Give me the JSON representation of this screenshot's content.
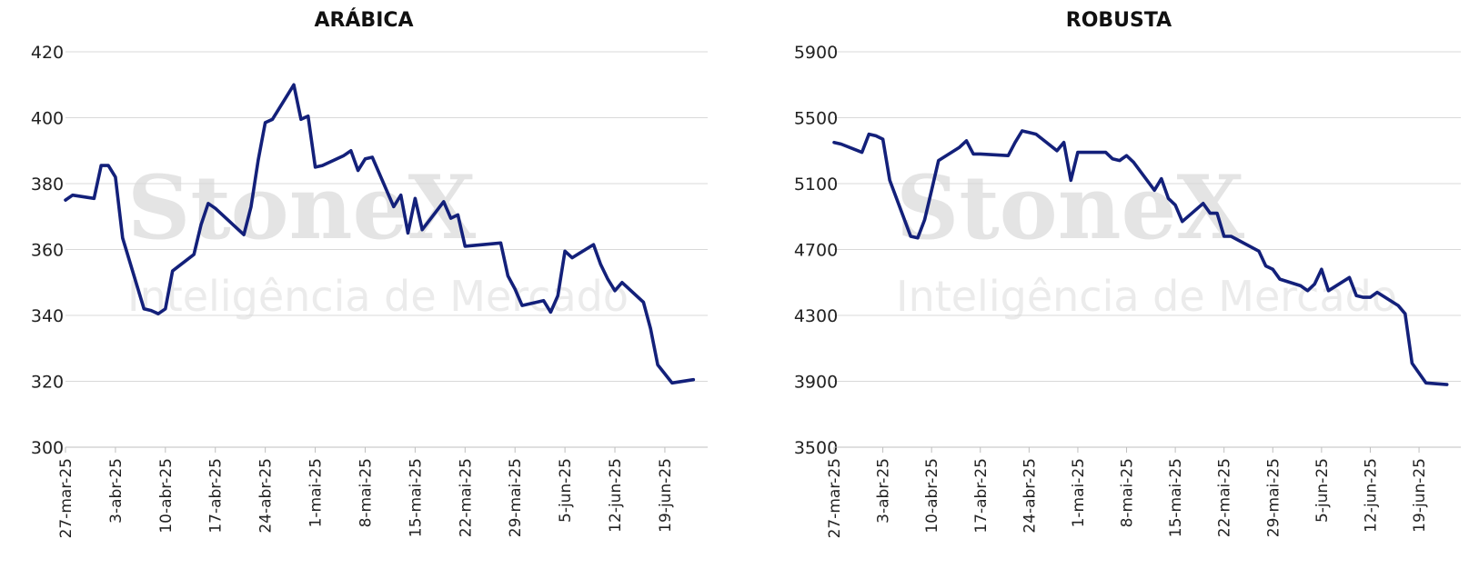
{
  "watermark": {
    "brand": "StoneX",
    "tagline": "Inteligência de Mercado"
  },
  "chart_data": [
    {
      "type": "line",
      "title": "ARÁBICA",
      "ylim": [
        300,
        420
      ],
      "ytick_step": 20,
      "grid": true,
      "color": "#13207a",
      "xtick_labels": [
        "27-mar-25",
        "3-abr-25",
        "10-abr-25",
        "17-abr-25",
        "24-abr-25",
        "1-mai-25",
        "8-mai-25",
        "15-mai-25",
        "22-mai-25",
        "29-mai-25",
        "5-jun-25",
        "12-jun-25",
        "19-jun-25"
      ],
      "x_start": "2025-03-27",
      "x_end": "2025-06-25",
      "series": [
        {
          "x": [
            "2025-03-27",
            "2025-03-28",
            "2025-03-31",
            "2025-04-01",
            "2025-04-02",
            "2025-04-03",
            "2025-04-04",
            "2025-04-07",
            "2025-04-08",
            "2025-04-09",
            "2025-04-10",
            "2025-04-11",
            "2025-04-14",
            "2025-04-15",
            "2025-04-16",
            "2025-04-17",
            "2025-04-21",
            "2025-04-22",
            "2025-04-23",
            "2025-04-24",
            "2025-04-25",
            "2025-04-28",
            "2025-04-29",
            "2025-04-30",
            "2025-05-01",
            "2025-05-02",
            "2025-05-05",
            "2025-05-06",
            "2025-05-07",
            "2025-05-08",
            "2025-05-09",
            "2025-05-12",
            "2025-05-13",
            "2025-05-14",
            "2025-05-15",
            "2025-05-16",
            "2025-05-19",
            "2025-05-20",
            "2025-05-21",
            "2025-05-22",
            "2025-05-27",
            "2025-05-28",
            "2025-05-29",
            "2025-05-30",
            "2025-06-02",
            "2025-06-03",
            "2025-06-04",
            "2025-06-05",
            "2025-06-06",
            "2025-06-09",
            "2025-06-10",
            "2025-06-11",
            "2025-06-12",
            "2025-06-13",
            "2025-06-16",
            "2025-06-17",
            "2025-06-18",
            "2025-06-20",
            "2025-06-23"
          ],
          "values": [
            375.0,
            376.5,
            375.5,
            385.5,
            385.5,
            382.0,
            363.5,
            342.0,
            341.5,
            340.5,
            342.0,
            353.5,
            358.5,
            367.5,
            374.0,
            372.5,
            364.5,
            373.0,
            387.0,
            398.5,
            399.5,
            410.0,
            399.5,
            400.5,
            385.0,
            385.5,
            388.5,
            390.0,
            384.0,
            387.5,
            388.0,
            373.0,
            376.5,
            365.0,
            375.5,
            366.0,
            374.5,
            369.5,
            370.5,
            361.0,
            362.0,
            352.0,
            348.0,
            343.0,
            344.5,
            341.0,
            346.0,
            359.5,
            357.5,
            361.5,
            355.5,
            351.0,
            347.5,
            350.0,
            344.0,
            336.0,
            325.0,
            319.5,
            320.5
          ]
        }
      ]
    },
    {
      "type": "line",
      "title": "ROBUSTA",
      "ylim": [
        3500,
        5900
      ],
      "ytick_step": 400,
      "grid": true,
      "color": "#13207a",
      "xtick_labels": [
        "27-mar-25",
        "3-abr-25",
        "10-abr-25",
        "17-abr-25",
        "24-abr-25",
        "1-mai-25",
        "8-mai-25",
        "15-mai-25",
        "22-mai-25",
        "29-mai-25",
        "5-jun-25",
        "12-jun-25",
        "19-jun-25"
      ],
      "x_start": "2025-03-27",
      "x_end": "2025-06-25",
      "series": [
        {
          "x": [
            "2025-03-27",
            "2025-03-28",
            "2025-03-31",
            "2025-04-01",
            "2025-04-02",
            "2025-04-03",
            "2025-04-04",
            "2025-04-07",
            "2025-04-08",
            "2025-04-09",
            "2025-04-10",
            "2025-04-11",
            "2025-04-14",
            "2025-04-15",
            "2025-04-16",
            "2025-04-17",
            "2025-04-21",
            "2025-04-22",
            "2025-04-23",
            "2025-04-24",
            "2025-04-25",
            "2025-04-28",
            "2025-04-29",
            "2025-04-30",
            "2025-05-01",
            "2025-05-02",
            "2025-05-05",
            "2025-05-06",
            "2025-05-07",
            "2025-05-08",
            "2025-05-09",
            "2025-05-12",
            "2025-05-13",
            "2025-05-14",
            "2025-05-15",
            "2025-05-16",
            "2025-05-19",
            "2025-05-20",
            "2025-05-21",
            "2025-05-22",
            "2025-05-23",
            "2025-05-27",
            "2025-05-28",
            "2025-05-29",
            "2025-05-30",
            "2025-06-02",
            "2025-06-03",
            "2025-06-04",
            "2025-06-05",
            "2025-06-06",
            "2025-06-09",
            "2025-06-10",
            "2025-06-11",
            "2025-06-12",
            "2025-06-13",
            "2025-06-16",
            "2025-06-17",
            "2025-06-18",
            "2025-06-20",
            "2025-06-23"
          ],
          "values": [
            5350,
            5340,
            5290,
            5400,
            5390,
            5370,
            5120,
            4780,
            4770,
            4880,
            5060,
            5240,
            5320,
            5360,
            5280,
            5280,
            5270,
            5350,
            5420,
            5410,
            5400,
            5300,
            5350,
            5120,
            5290,
            5290,
            5290,
            5250,
            5240,
            5270,
            5230,
            5060,
            5130,
            5010,
            4970,
            4870,
            4980,
            4920,
            4920,
            4780,
            4780,
            4690,
            4600,
            4580,
            4520,
            4480,
            4450,
            4490,
            4580,
            4450,
            4530,
            4420,
            4410,
            4410,
            4440,
            4360,
            4310,
            4010,
            3890,
            3880
          ]
        }
      ]
    }
  ]
}
